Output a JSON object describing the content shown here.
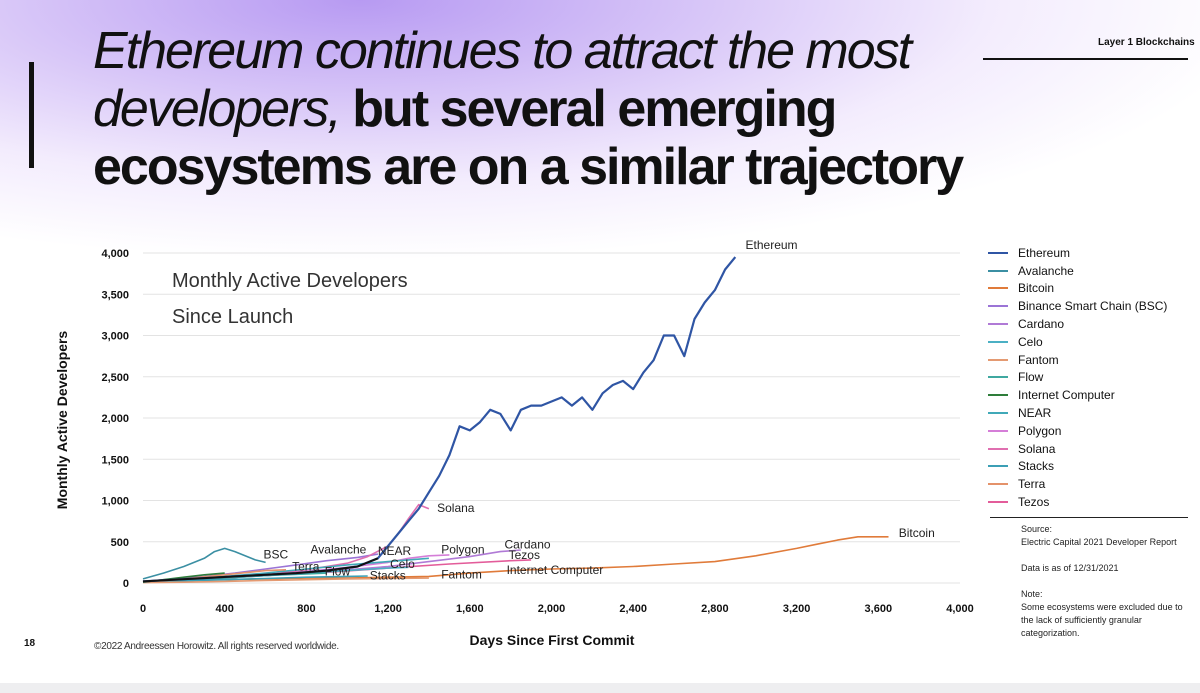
{
  "header": {
    "title_light": "Ethereum continues to attract the most developers,",
    "title_bold": "but several emerging ecosystems are on a similar trajectory",
    "brand": "Layer 1 Blockchains"
  },
  "footer": {
    "page_number": "18",
    "copyright": "©2022 Andreessen Horowitz. All rights reserved worldwide."
  },
  "notes": {
    "source_label": "Source:",
    "source_text": "Electric Capital 2021 Developer Report",
    "data_date": "Data is as of 12/31/2021",
    "note_label": "Note:",
    "note_text": "Some ecosystems were excluded due to the lack of sufficiently granular categorization."
  },
  "colors": {
    "Ethereum": "#2f55a4",
    "Avalanche": "#3b8fa3",
    "Bitcoin": "#e07b3a",
    "Binance Smart Chain (BSC)": "#9b74d6",
    "Cardano": "#b07ad6",
    "Celo": "#4bb0c4",
    "Fantom": "#e49a72",
    "Flow": "#3fa8a0",
    "Internet Computer": "#2e7d3a",
    "NEAR": "#40a9b8",
    "Polygon": "#d57ed8",
    "Solana": "#e06fb0",
    "Stacks": "#3c9fb5",
    "Terra": "#e4926a",
    "Tezos": "#e35c9a",
    "Ethereum_early": "#111111"
  },
  "chart_data": {
    "type": "line",
    "title": "Monthly Active Developers Since Launch",
    "title_lines": [
      "Monthly Active Developers",
      "Since Launch"
    ],
    "xlabel": "Days Since First Commit",
    "ylabel": "Monthly Active Developers",
    "xlim": [
      0,
      4000
    ],
    "ylim": [
      0,
      4000
    ],
    "x_ticks": [
      0,
      400,
      800,
      1200,
      1600,
      2000,
      2400,
      2800,
      3200,
      3600,
      4000
    ],
    "x_tick_labels": [
      "0",
      "400",
      "800",
      "1,200",
      "1,600",
      "2,000",
      "2,400",
      "2,800",
      "3,200",
      "3,600",
      "4,000"
    ],
    "y_ticks": [
      0,
      500,
      1000,
      1500,
      2000,
      2500,
      3000,
      3500,
      4000
    ],
    "y_tick_labels": [
      "0",
      "500",
      "1,000",
      "1,500",
      "2,000",
      "2,500",
      "3,000",
      "3,500",
      "4,000"
    ],
    "grid": true,
    "legend": "right",
    "series": [
      {
        "name": "Ethereum",
        "x": [
          0,
          150,
          300,
          450,
          600,
          750,
          900,
          1050,
          1150,
          1200,
          1250,
          1300,
          1350,
          1400,
          1450,
          1500,
          1550,
          1600,
          1650,
          1700,
          1750,
          1800,
          1850,
          1900,
          1950,
          2000,
          2050,
          2100,
          2150,
          2200,
          2250,
          2300,
          2350,
          2400,
          2450,
          2500,
          2550,
          2600,
          2650,
          2700,
          2750,
          2800,
          2850,
          2900
        ],
        "y": [
          20,
          40,
          60,
          80,
          100,
          120,
          150,
          200,
          300,
          450,
          600,
          750,
          900,
          1100,
          1300,
          1550,
          1900,
          1850,
          1950,
          2100,
          2050,
          1850,
          2100,
          2150,
          2150,
          2200,
          2250,
          2150,
          2250,
          2100,
          2300,
          2400,
          2450,
          2350,
          2550,
          2700,
          3000,
          3000,
          2750,
          3200,
          3400,
          3550,
          3800,
          3950
        ]
      },
      {
        "name": "Bitcoin",
        "x": [
          0,
          200,
          400,
          600,
          800,
          1000,
          1200,
          1400,
          1600,
          1800,
          2000,
          2200,
          2400,
          2600,
          2800,
          3000,
          3200,
          3300,
          3400,
          3500,
          3600,
          3650
        ],
        "y": [
          20,
          30,
          40,
          50,
          60,
          60,
          70,
          80,
          120,
          150,
          170,
          180,
          200,
          230,
          260,
          330,
          420,
          470,
          520,
          560,
          560,
          560
        ]
      },
      {
        "name": "Avalanche",
        "x": [
          0,
          100,
          200,
          300,
          350,
          400,
          450,
          500,
          550,
          600
        ],
        "y": [
          50,
          120,
          200,
          300,
          380,
          420,
          380,
          330,
          280,
          250
        ]
      },
      {
        "name": "Binance Smart Chain (BSC)",
        "x": [
          0,
          150,
          300,
          450,
          600,
          750,
          900,
          1050,
          1150
        ],
        "y": [
          20,
          50,
          80,
          120,
          170,
          220,
          270,
          310,
          350
        ]
      },
      {
        "name": "Cardano",
        "x": [
          0,
          200,
          400,
          600,
          800,
          1000,
          1200,
          1400,
          1600,
          1750,
          1850
        ],
        "y": [
          20,
          40,
          60,
          90,
          120,
          160,
          200,
          260,
          320,
          380,
          400
        ]
      },
      {
        "name": "Polygon",
        "x": [
          0,
          200,
          400,
          600,
          800,
          1000,
          1200,
          1300,
          1400,
          1500
        ],
        "y": [
          20,
          40,
          70,
          100,
          140,
          190,
          250,
          300,
          330,
          340
        ]
      },
      {
        "name": "Solana",
        "x": [
          0,
          200,
          400,
          600,
          800,
          1000,
          1100,
          1200,
          1250,
          1300,
          1350,
          1400
        ],
        "y": [
          10,
          30,
          60,
          100,
          160,
          240,
          320,
          450,
          600,
          780,
          950,
          900
        ]
      },
      {
        "name": "Tezos",
        "x": [
          0,
          300,
          600,
          900,
          1200,
          1500,
          1800,
          1900
        ],
        "y": [
          20,
          50,
          90,
          130,
          180,
          230,
          270,
          280
        ]
      },
      {
        "name": "NEAR",
        "x": [
          0,
          200,
          400,
          600,
          800,
          1000,
          1200,
          1300,
          1400
        ],
        "y": [
          10,
          40,
          80,
          120,
          170,
          220,
          260,
          280,
          300
        ]
      },
      {
        "name": "Celo",
        "x": [
          0,
          200,
          400,
          600,
          800,
          1000,
          1200,
          1300
        ],
        "y": [
          10,
          30,
          60,
          90,
          120,
          150,
          180,
          190
        ]
      },
      {
        "name": "Terra",
        "x": [
          0,
          200,
          400,
          600,
          700
        ],
        "y": [
          10,
          50,
          100,
          150,
          160
        ]
      },
      {
        "name": "Flow",
        "x": [
          0,
          200,
          400,
          600,
          800,
          900
        ],
        "y": [
          10,
          30,
          60,
          90,
          110,
          120
        ]
      },
      {
        "name": "Stacks",
        "x": [
          0,
          200,
          400,
          600,
          800,
          1000,
          1100
        ],
        "y": [
          10,
          25,
          40,
          55,
          70,
          80,
          85
        ]
      },
      {
        "name": "Fantom",
        "x": [
          0,
          200,
          400,
          600,
          800,
          1000,
          1200,
          1400
        ],
        "y": [
          5,
          10,
          20,
          30,
          40,
          50,
          55,
          60
        ]
      },
      {
        "name": "Internet Computer",
        "x": [
          0,
          100,
          200,
          300,
          400
        ],
        "y": [
          10,
          40,
          70,
          100,
          120
        ]
      }
    ],
    "annotations": [
      {
        "text": "Ethereum",
        "x": 2950,
        "y": 4050
      },
      {
        "text": "Bitcoin",
        "x": 3700,
        "y": 560
      },
      {
        "text": "Solana",
        "x": 1440,
        "y": 860
      },
      {
        "text": "BSC",
        "x": 590,
        "y": 300
      },
      {
        "text": "Avalanche",
        "x": 820,
        "y": 360
      },
      {
        "text": "NEAR",
        "x": 1150,
        "y": 340
      },
      {
        "text": "Polygon",
        "x": 1460,
        "y": 360
      },
      {
        "text": "Cardano",
        "x": 1770,
        "y": 420
      },
      {
        "text": "Tezos",
        "x": 1790,
        "y": 290
      },
      {
        "text": "Terra",
        "x": 730,
        "y": 150
      },
      {
        "text": "Flow",
        "x": 890,
        "y": 90
      },
      {
        "text": "Celo",
        "x": 1210,
        "y": 180
      },
      {
        "text": "Stacks",
        "x": 1110,
        "y": 40
      },
      {
        "text": "Fantom",
        "x": 1460,
        "y": 55
      },
      {
        "text": "Internet Computer",
        "x": 1780,
        "y": 110
      }
    ]
  },
  "legend_items": [
    "Ethereum",
    "Avalanche",
    "Bitcoin",
    "Binance Smart Chain (BSC)",
    "Cardano",
    "Celo",
    "Fantom",
    "Flow",
    "Internet Computer",
    "NEAR",
    "Polygon",
    "Solana",
    "Stacks",
    "Terra",
    "Tezos"
  ]
}
